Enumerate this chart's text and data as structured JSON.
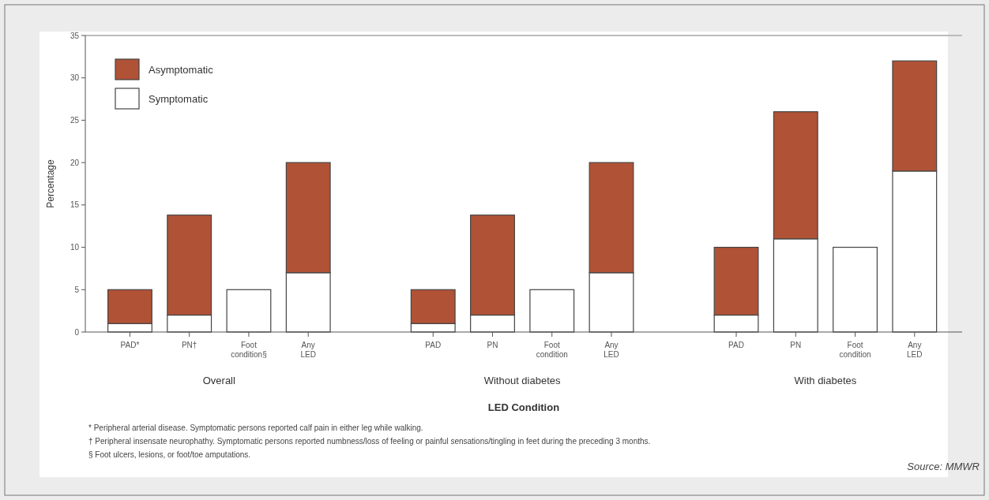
{
  "chart_data": {
    "type": "bar",
    "stacked": true,
    "xlabel": "LED Condition",
    "ylabel": "Percentage",
    "categories": [
      "PAD*",
      "PN†",
      "Foot condition§",
      "Any LED",
      "PAD",
      "PN",
      "Foot condition",
      "Any LED",
      "PAD",
      "PN",
      "Foot condition",
      "Any LED"
    ],
    "series": [
      {
        "name": "Symptomatic",
        "color": "#ffffff",
        "values": [
          1,
          2,
          5,
          7,
          1,
          2,
          5,
          7,
          2,
          11,
          10,
          19
        ]
      },
      {
        "name": "Asymptomatic",
        "color": "#b05236",
        "values": [
          4,
          11.8,
          null,
          13,
          4,
          11.8,
          null,
          13,
          8,
          15,
          null,
          13
        ]
      }
    ],
    "ylim": [
      0,
      35
    ],
    "yticks": [
      0,
      5,
      10,
      15,
      20,
      25,
      30,
      35
    ],
    "grid": false,
    "legend": "top left",
    "annotations": [
      "Overall",
      "Without diabetes",
      "With diabetes",
      "* Peripheral arterial disease. Symptomatic persons reported calf pain in either leg while walking.",
      "† Peripheral insensate neurophathy. Symptomatic persons reported numbness/loss of feeling or painful sensations/tingling in feet during the preceding 3 months.",
      "§ Foot ulcers, lesions, or foot/toe amputations.",
      "Source: MMWR"
    ]
  }
}
